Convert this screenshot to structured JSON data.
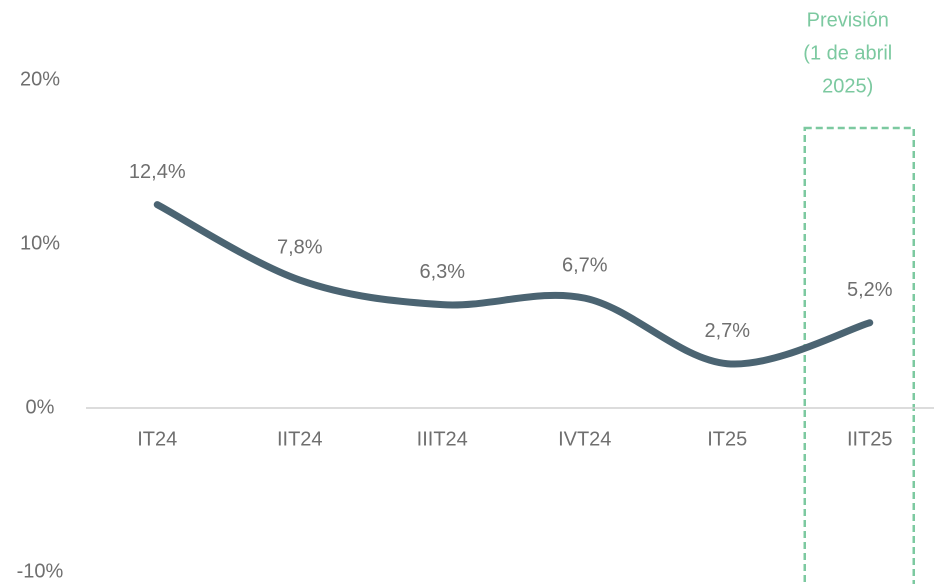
{
  "chart_data": {
    "type": "line",
    "categories": [
      "IT24",
      "IIT24",
      "IIIT24",
      "IVT24",
      "IT25",
      "IIT25"
    ],
    "series": [
      {
        "color": "#4b6472",
        "values": [
          12.4,
          7.8,
          6.3,
          6.7,
          2.7,
          5.2
        ],
        "value_labels": [
          "12,4%",
          "7,8%",
          "6,3%",
          "6,7%",
          "2,7%",
          "5,2%"
        ]
      }
    ],
    "ylim": [
      -10,
      20
    ],
    "yticks": [
      {
        "value": -10,
        "label": "-10%"
      },
      {
        "value": 0,
        "label": "0%"
      },
      {
        "value": 10,
        "label": "10%"
      },
      {
        "value": 20,
        "label": "20%"
      }
    ],
    "grid": false,
    "annotation": [
      "Previsión",
      "(1 de abril",
      "2025)"
    ],
    "annotation_color": "#7cc9a0"
  }
}
